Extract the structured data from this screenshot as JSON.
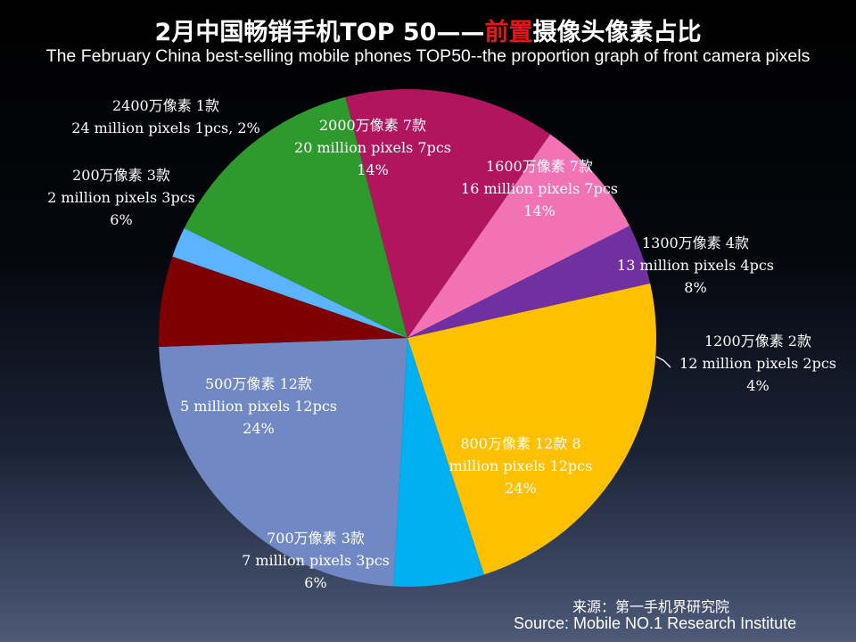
{
  "header": {
    "title_cn_prefix": "2月中国畅销手机TOP 50——",
    "title_cn_highlight": "前置",
    "title_cn_suffix": "摄像头像素占比",
    "title_en": "The February China best-selling mobile phones TOP50--the proportion graph of front camera pixels"
  },
  "chart_data": {
    "type": "pie",
    "title": "2月中国畅销手机TOP 50——前置摄像头像素占比",
    "subtitle": "The February China best-selling mobile phones TOP50--the proportion graph of front camera pixels",
    "start_angle_deg": 35,
    "slices": [
      {
        "label_cn": "1300万像素 4款",
        "label_en": "13 million pixels 4pcs",
        "percent_label": "8%",
        "count": 4,
        "color": "#f173b6"
      },
      {
        "label_cn": "1200万像素 2款",
        "label_en": "12 million pixels 2pcs",
        "percent_label": "4%",
        "count": 2,
        "color": "#7030a0"
      },
      {
        "label_cn": "800万像素 12款 8",
        "label_en": "million pixels 12pcs",
        "percent_label": "24%",
        "count": 12,
        "color": "#ffc000"
      },
      {
        "label_cn": "700万像素 3款",
        "label_en": "7 million pixels 3pcs",
        "percent_label": "6%",
        "count": 3,
        "color": "#00b0f0"
      },
      {
        "label_cn": "500万像素 12款",
        "label_en": "5 million pixels 12pcs",
        "percent_label": "24%",
        "count": 12,
        "color": "#7088c4"
      },
      {
        "label_cn": "200万像素 3款",
        "label_en": "2 million pixels 3pcs",
        "percent_label": "6%",
        "count": 3,
        "color": "#7f0000"
      },
      {
        "label_cn": "2400万像素  1款",
        "label_en": "24 million pixels 1pcs, 2%",
        "percent_label": "",
        "count": 1,
        "color": "#5ab4ff"
      },
      {
        "label_cn": "2000万像素 7款",
        "label_en": "20 million pixels 7pcs",
        "percent_label": "14%",
        "count": 7,
        "color": "#2e9a2e"
      },
      {
        "label_cn": "1600万像素 7款",
        "label_en": "16 million pixels 7pcs",
        "percent_label": "14%",
        "count": 7,
        "color": "#b0155e"
      }
    ]
  },
  "source": {
    "cn": "来源：第一手机界研究院",
    "en": "Source: Mobile NO.1 Research Institute"
  }
}
